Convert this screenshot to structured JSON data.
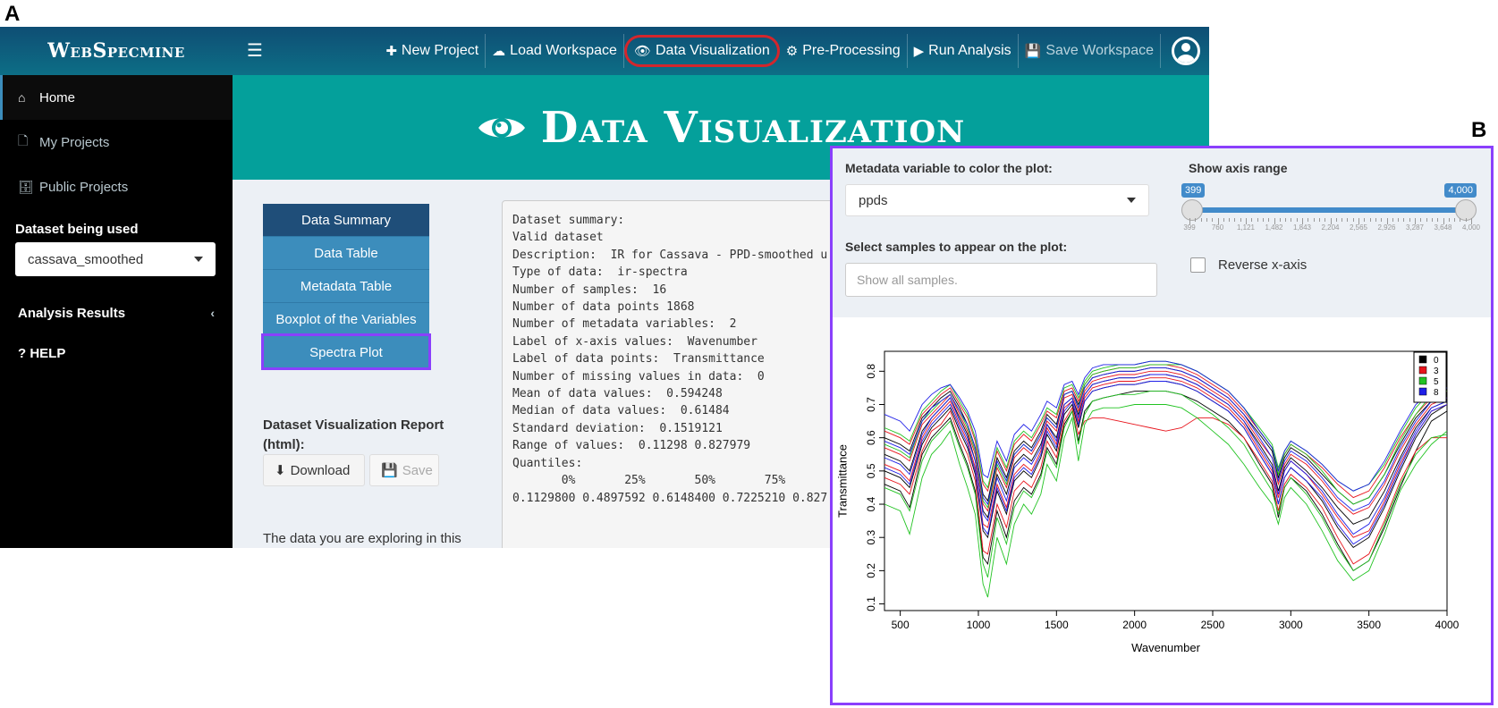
{
  "figure": {
    "label_a": "A",
    "label_b": "B"
  },
  "app": {
    "logo": "WebSpecmine",
    "nav": [
      {
        "label": "New Project",
        "icon": "plus-icon",
        "glyph": "✚"
      },
      {
        "label": "Load Workspace",
        "icon": "cloud-upload-icon",
        "glyph": "☁"
      },
      {
        "label": "Data Visualization",
        "icon": "eye-icon",
        "glyph": "👁"
      },
      {
        "label": "Pre-Processing",
        "icon": "gears-icon",
        "glyph": "⚙"
      },
      {
        "label": "Run Analysis",
        "icon": "play-icon",
        "glyph": "▶"
      },
      {
        "label": "Save Workspace",
        "icon": "floppy-disk-icon",
        "glyph": "💾"
      }
    ],
    "sidebar": {
      "items": [
        {
          "label": "Home",
          "glyph": "⌂"
        },
        {
          "label": "My Projects",
          "glyph": "🗋"
        },
        {
          "label": "Public Projects",
          "glyph": "🗄"
        }
      ],
      "dataset_label": "Dataset being used",
      "dataset_value": "cassava_smoothed",
      "analysis_results": "Analysis Results",
      "help": "? HELP"
    },
    "hero_title": "Data Visualization",
    "tabs": [
      "Data Summary",
      "Data Table",
      "Metadata Table",
      "Boxplot of the Variables",
      "Spectra Plot"
    ],
    "report": {
      "title": "Dataset Visualization Report (html):",
      "download": "Download",
      "save": "Save",
      "exploring": "The data you are exploring in this"
    },
    "summary_lines": [
      "Dataset summary:",
      "Valid dataset",
      "Description:  IR for Cassava - PPD-smoothed u",
      "Type of data:  ir-spectra",
      "Number of samples:  16",
      "Number of data points 1868",
      "Number of metadata variables:  2",
      "Label of x-axis values:  Wavenumber",
      "Label of data points:  Transmittance",
      "Number of missing values in data:  0",
      "Mean of data values:  0.594248",
      "Median of data values:  0.61484",
      "Standard deviation:  0.1519121",
      "Range of values:  0.11298 0.827979",
      "Quantiles:",
      "       0%       25%       50%       75%",
      "0.1129800 0.4897592 0.6148400 0.7225210 0.827"
    ]
  },
  "spectra_panel": {
    "color_label": "Metadata variable to color the plot:",
    "color_value": "ppds",
    "samples_label": "Select samples to appear on the plot:",
    "samples_placeholder": "Show all samples.",
    "range_label": "Show axis range",
    "range_min": "399",
    "range_max": "4,000",
    "range_ticks": [
      "399",
      "760",
      "1,121",
      "1,482",
      "1,843",
      "2,204",
      "2,565",
      "2,926",
      "3,287",
      "3,648",
      "4,000"
    ],
    "reverse_label": "Reverse x-axis"
  },
  "chart_data": {
    "type": "line",
    "title": "",
    "xlabel": "Wavenumber",
    "ylabel": "Transmittance",
    "xlim": [
      399,
      4000
    ],
    "ylim": [
      0.08,
      0.86
    ],
    "xticks": [
      "500",
      "1000",
      "1500",
      "2000",
      "2500",
      "3000",
      "3500",
      "4000"
    ],
    "yticks": [
      "0.1",
      "0.2",
      "0.3",
      "0.4",
      "0.5",
      "0.6",
      "0.7",
      "0.8"
    ],
    "legend": {
      "position": "top-right",
      "entries": [
        "0",
        "3",
        "5",
        "8"
      ]
    },
    "colors": {
      "0": "#000000",
      "3": "#e8141c",
      "5": "#22c322",
      "8": "#1f1fe8"
    },
    "grid": false,
    "wavenumbers": [
      399,
      500,
      560,
      640,
      700,
      760,
      820,
      880,
      930,
      980,
      1030,
      1060,
      1120,
      1180,
      1230,
      1290,
      1340,
      1400,
      1440,
      1500,
      1550,
      1600,
      1640,
      1680,
      1730,
      1800,
      1900,
      2000,
      2100,
      2200,
      2300,
      2400,
      2500,
      2600,
      2700,
      2800,
      2880,
      2920,
      2960,
      3000,
      3100,
      3200,
      3300,
      3400,
      3500,
      3600,
      3700,
      3800,
      3900,
      4000
    ],
    "series": [
      {
        "group": "0",
        "values": [
          0.46,
          0.44,
          0.39,
          0.55,
          0.6,
          0.63,
          0.66,
          0.58,
          0.52,
          0.44,
          0.24,
          0.22,
          0.38,
          0.3,
          0.41,
          0.45,
          0.43,
          0.49,
          0.57,
          0.52,
          0.64,
          0.68,
          0.59,
          0.68,
          0.71,
          0.72,
          0.73,
          0.74,
          0.74,
          0.74,
          0.73,
          0.71,
          0.68,
          0.65,
          0.6,
          0.52,
          0.46,
          0.36,
          0.45,
          0.48,
          0.44,
          0.37,
          0.28,
          0.2,
          0.23,
          0.33,
          0.45,
          0.56,
          0.65,
          0.68
        ]
      },
      {
        "group": "0",
        "values": [
          0.5,
          0.48,
          0.45,
          0.58,
          0.63,
          0.66,
          0.69,
          0.62,
          0.57,
          0.49,
          0.32,
          0.3,
          0.44,
          0.37,
          0.47,
          0.5,
          0.48,
          0.54,
          0.61,
          0.56,
          0.67,
          0.7,
          0.63,
          0.71,
          0.74,
          0.75,
          0.76,
          0.76,
          0.77,
          0.77,
          0.76,
          0.74,
          0.71,
          0.68,
          0.63,
          0.55,
          0.49,
          0.4,
          0.48,
          0.51,
          0.47,
          0.41,
          0.33,
          0.27,
          0.3,
          0.39,
          0.5,
          0.6,
          0.67,
          0.7
        ]
      },
      {
        "group": "0",
        "values": [
          0.55,
          0.53,
          0.5,
          0.62,
          0.66,
          0.69,
          0.72,
          0.66,
          0.61,
          0.53,
          0.38,
          0.36,
          0.49,
          0.43,
          0.52,
          0.55,
          0.53,
          0.58,
          0.64,
          0.6,
          0.7,
          0.72,
          0.67,
          0.73,
          0.76,
          0.77,
          0.78,
          0.78,
          0.79,
          0.79,
          0.78,
          0.76,
          0.73,
          0.7,
          0.65,
          0.58,
          0.52,
          0.44,
          0.51,
          0.54,
          0.5,
          0.45,
          0.39,
          0.34,
          0.36,
          0.44,
          0.54,
          0.63,
          0.69,
          0.71
        ]
      },
      {
        "group": "0",
        "values": [
          0.6,
          0.58,
          0.56,
          0.66,
          0.69,
          0.72,
          0.74,
          0.69,
          0.64,
          0.57,
          0.43,
          0.41,
          0.54,
          0.48,
          0.56,
          0.59,
          0.57,
          0.62,
          0.67,
          0.64,
          0.73,
          0.74,
          0.7,
          0.75,
          0.78,
          0.79,
          0.8,
          0.8,
          0.81,
          0.81,
          0.8,
          0.78,
          0.75,
          0.72,
          0.67,
          0.61,
          0.56,
          0.48,
          0.54,
          0.57,
          0.54,
          0.49,
          0.44,
          0.4,
          0.42,
          0.49,
          0.58,
          0.66,
          0.71,
          0.73
        ]
      },
      {
        "group": "3",
        "values": [
          0.48,
          0.46,
          0.43,
          0.56,
          0.62,
          0.64,
          0.68,
          0.6,
          0.55,
          0.47,
          0.26,
          0.25,
          0.4,
          0.33,
          0.44,
          0.47,
          0.45,
          0.51,
          0.59,
          0.54,
          0.65,
          0.69,
          0.61,
          0.65,
          0.66,
          0.66,
          0.65,
          0.64,
          0.63,
          0.62,
          0.63,
          0.66,
          0.66,
          0.64,
          0.6,
          0.53,
          0.47,
          0.38,
          0.46,
          0.49,
          0.45,
          0.39,
          0.3,
          0.22,
          0.25,
          0.35,
          0.47,
          0.56,
          0.6,
          0.6
        ]
      },
      {
        "group": "3",
        "values": [
          0.52,
          0.5,
          0.47,
          0.6,
          0.65,
          0.68,
          0.71,
          0.64,
          0.59,
          0.51,
          0.34,
          0.33,
          0.46,
          0.39,
          0.49,
          0.52,
          0.5,
          0.56,
          0.63,
          0.58,
          0.69,
          0.71,
          0.65,
          0.72,
          0.75,
          0.76,
          0.77,
          0.77,
          0.78,
          0.78,
          0.77,
          0.75,
          0.72,
          0.69,
          0.64,
          0.56,
          0.5,
          0.42,
          0.5,
          0.53,
          0.49,
          0.43,
          0.36,
          0.3,
          0.32,
          0.41,
          0.52,
          0.61,
          0.68,
          0.7
        ]
      },
      {
        "group": "3",
        "values": [
          0.57,
          0.55,
          0.53,
          0.64,
          0.67,
          0.7,
          0.73,
          0.67,
          0.62,
          0.55,
          0.4,
          0.38,
          0.51,
          0.45,
          0.54,
          0.57,
          0.55,
          0.6,
          0.65,
          0.62,
          0.72,
          0.73,
          0.68,
          0.74,
          0.77,
          0.78,
          0.79,
          0.79,
          0.8,
          0.8,
          0.79,
          0.77,
          0.74,
          0.71,
          0.66,
          0.59,
          0.54,
          0.46,
          0.52,
          0.55,
          0.52,
          0.47,
          0.41,
          0.37,
          0.39,
          0.46,
          0.56,
          0.64,
          0.7,
          0.72
        ]
      },
      {
        "group": "3",
        "values": [
          0.62,
          0.6,
          0.58,
          0.67,
          0.7,
          0.73,
          0.75,
          0.7,
          0.66,
          0.59,
          0.46,
          0.44,
          0.56,
          0.5,
          0.58,
          0.61,
          0.59,
          0.64,
          0.68,
          0.66,
          0.74,
          0.75,
          0.71,
          0.76,
          0.79,
          0.8,
          0.81,
          0.81,
          0.82,
          0.82,
          0.81,
          0.79,
          0.76,
          0.73,
          0.68,
          0.62,
          0.57,
          0.5,
          0.55,
          0.58,
          0.55,
          0.51,
          0.46,
          0.42,
          0.44,
          0.51,
          0.6,
          0.67,
          0.72,
          0.74
        ]
      },
      {
        "group": "5",
        "values": [
          0.4,
          0.38,
          0.31,
          0.48,
          0.55,
          0.58,
          0.62,
          0.52,
          0.45,
          0.37,
          0.16,
          0.12,
          0.3,
          0.22,
          0.34,
          0.4,
          0.37,
          0.43,
          0.52,
          0.47,
          0.6,
          0.66,
          0.53,
          0.64,
          0.68,
          0.69,
          0.69,
          0.7,
          0.7,
          0.7,
          0.69,
          0.66,
          0.62,
          0.58,
          0.52,
          0.45,
          0.4,
          0.34,
          0.42,
          0.45,
          0.4,
          0.32,
          0.23,
          0.17,
          0.2,
          0.31,
          0.44,
          0.52,
          0.58,
          0.62
        ]
      },
      {
        "group": "5",
        "values": [
          0.45,
          0.43,
          0.38,
          0.53,
          0.59,
          0.62,
          0.65,
          0.57,
          0.51,
          0.43,
          0.22,
          0.18,
          0.36,
          0.28,
          0.39,
          0.44,
          0.42,
          0.48,
          0.56,
          0.51,
          0.63,
          0.68,
          0.58,
          0.67,
          0.71,
          0.72,
          0.73,
          0.73,
          0.74,
          0.74,
          0.73,
          0.7,
          0.67,
          0.63,
          0.58,
          0.5,
          0.44,
          0.37,
          0.45,
          0.48,
          0.43,
          0.36,
          0.27,
          0.2,
          0.23,
          0.34,
          0.46,
          0.55,
          0.6,
          0.61
        ]
      },
      {
        "group": "5",
        "values": [
          0.58,
          0.56,
          0.54,
          0.65,
          0.68,
          0.71,
          0.73,
          0.68,
          0.63,
          0.56,
          0.41,
          0.39,
          0.52,
          0.46,
          0.55,
          0.58,
          0.56,
          0.61,
          0.66,
          0.63,
          0.73,
          0.74,
          0.69,
          0.76,
          0.79,
          0.8,
          0.81,
          0.81,
          0.82,
          0.82,
          0.82,
          0.8,
          0.77,
          0.74,
          0.69,
          0.62,
          0.57,
          0.49,
          0.55,
          0.58,
          0.55,
          0.5,
          0.44,
          0.4,
          0.42,
          0.49,
          0.59,
          0.67,
          0.73,
          0.74
        ]
      },
      {
        "group": "5",
        "values": [
          0.63,
          0.61,
          0.59,
          0.68,
          0.71,
          0.74,
          0.76,
          0.71,
          0.67,
          0.6,
          0.47,
          0.45,
          0.57,
          0.51,
          0.59,
          0.62,
          0.6,
          0.65,
          0.69,
          0.67,
          0.75,
          0.76,
          0.72,
          0.77,
          0.8,
          0.81,
          0.82,
          0.82,
          0.83,
          0.83,
          0.82,
          0.8,
          0.77,
          0.74,
          0.69,
          0.63,
          0.58,
          0.51,
          0.56,
          0.59,
          0.56,
          0.52,
          0.47,
          0.44,
          0.46,
          0.52,
          0.61,
          0.69,
          0.74,
          0.75
        ]
      },
      {
        "group": "8",
        "values": [
          0.67,
          0.65,
          0.62,
          0.7,
          0.73,
          0.75,
          0.76,
          0.72,
          0.68,
          0.62,
          0.49,
          0.48,
          0.59,
          0.53,
          0.61,
          0.64,
          0.62,
          0.67,
          0.71,
          0.69,
          0.76,
          0.77,
          0.73,
          0.78,
          0.81,
          0.82,
          0.82,
          0.82,
          0.83,
          0.83,
          0.82,
          0.8,
          0.77,
          0.74,
          0.69,
          0.62,
          0.57,
          0.5,
          0.56,
          0.59,
          0.56,
          0.52,
          0.47,
          0.44,
          0.46,
          0.53,
          0.62,
          0.7,
          0.74,
          0.75
        ]
      },
      {
        "group": "8",
        "values": [
          0.59,
          0.57,
          0.55,
          0.65,
          0.69,
          0.71,
          0.73,
          0.68,
          0.64,
          0.57,
          0.42,
          0.4,
          0.53,
          0.47,
          0.55,
          0.58,
          0.56,
          0.61,
          0.66,
          0.63,
          0.73,
          0.74,
          0.69,
          0.75,
          0.78,
          0.79,
          0.8,
          0.8,
          0.81,
          0.81,
          0.8,
          0.78,
          0.75,
          0.72,
          0.67,
          0.6,
          0.54,
          0.47,
          0.53,
          0.56,
          0.53,
          0.48,
          0.42,
          0.38,
          0.4,
          0.47,
          0.57,
          0.65,
          0.71,
          0.72
        ]
      },
      {
        "group": "8",
        "values": [
          0.54,
          0.52,
          0.49,
          0.61,
          0.66,
          0.69,
          0.72,
          0.65,
          0.6,
          0.53,
          0.37,
          0.35,
          0.48,
          0.41,
          0.51,
          0.54,
          0.52,
          0.57,
          0.64,
          0.59,
          0.7,
          0.72,
          0.66,
          0.73,
          0.76,
          0.77,
          0.78,
          0.78,
          0.79,
          0.79,
          0.78,
          0.76,
          0.73,
          0.7,
          0.65,
          0.57,
          0.51,
          0.43,
          0.5,
          0.53,
          0.49,
          0.44,
          0.37,
          0.31,
          0.34,
          0.42,
          0.53,
          0.62,
          0.69,
          0.71
        ]
      },
      {
        "group": "8",
        "values": [
          0.51,
          0.49,
          0.46,
          0.59,
          0.64,
          0.67,
          0.7,
          0.63,
          0.58,
          0.5,
          0.33,
          0.31,
          0.45,
          0.38,
          0.48,
          0.51,
          0.49,
          0.55,
          0.62,
          0.57,
          0.68,
          0.71,
          0.64,
          0.71,
          0.74,
          0.75,
          0.76,
          0.76,
          0.77,
          0.77,
          0.76,
          0.74,
          0.71,
          0.68,
          0.63,
          0.55,
          0.49,
          0.4,
          0.48,
          0.51,
          0.47,
          0.42,
          0.34,
          0.28,
          0.31,
          0.4,
          0.51,
          0.61,
          0.68,
          0.7
        ]
      }
    ]
  }
}
